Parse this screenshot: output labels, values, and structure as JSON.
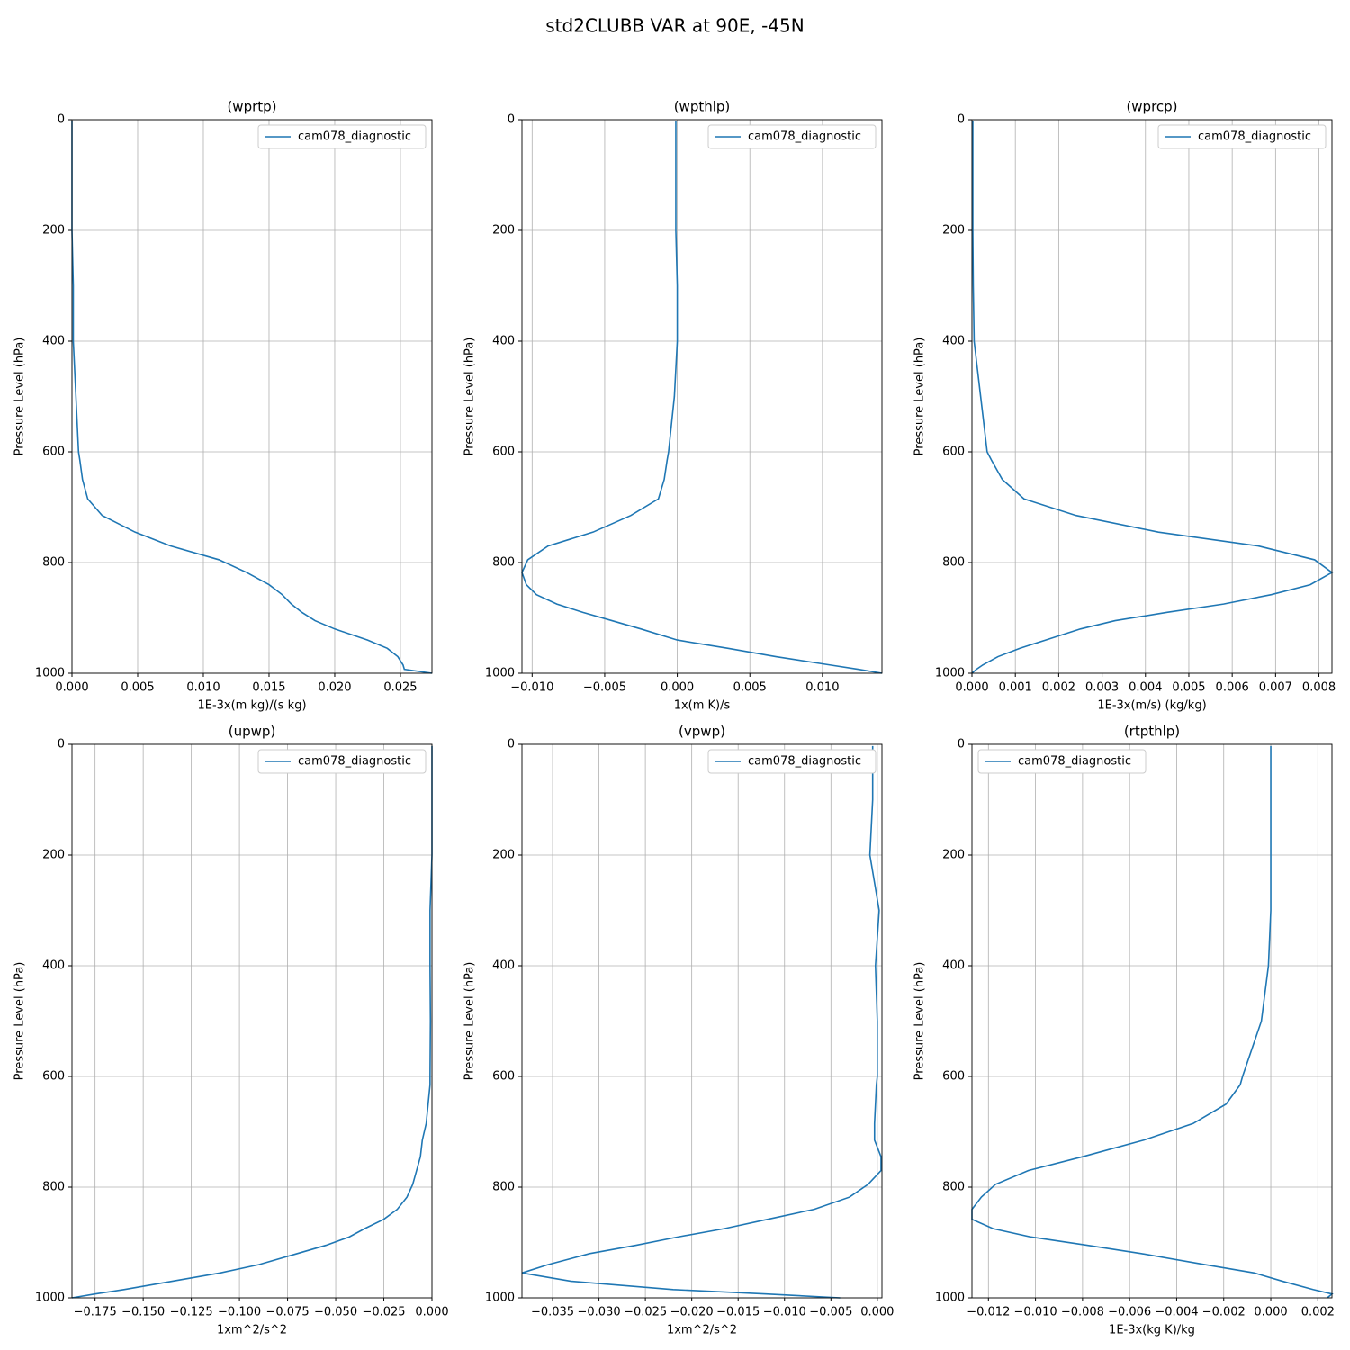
{
  "title": "std2CLUBB VAR at 90E, -45N",
  "chart_data": [
    {
      "type": "line",
      "title": "(wprtp)",
      "x_label": "1E-3x(m kg)/(s kg)",
      "y_label": "Pressure Level (hPa)",
      "grid": true,
      "legend": "upper right",
      "xlim": [
        0,
        0.0274
      ],
      "xticks": [
        {
          "value": 0,
          "label": "0.000"
        },
        {
          "value": 0.005,
          "label": "0.005"
        },
        {
          "value": 0.01,
          "label": "0.010"
        },
        {
          "value": 0.015,
          "label": "0.015"
        },
        {
          "value": 0.02,
          "label": "0.020"
        },
        {
          "value": 0.025,
          "label": "0.025"
        }
      ],
      "ylim": [
        1000,
        0
      ],
      "yticks": [
        0,
        200,
        400,
        600,
        800,
        1000
      ],
      "y": [
        3,
        100,
        200,
        300,
        400,
        500,
        600,
        615,
        650,
        685,
        715,
        745,
        770,
        795,
        818,
        840,
        858,
        875,
        890,
        905,
        920,
        940,
        955,
        970,
        985,
        993,
        1000
      ],
      "series": [
        {
          "name": "cam078_diagnostic",
          "color": "#1f77b4",
          "values": [
            0,
            0,
            0,
            0.0001,
            0.0001,
            0.0003,
            0.0005,
            0.0006,
            0.0008,
            0.0012,
            0.0023,
            0.0048,
            0.0075,
            0.0112,
            0.0133,
            0.015,
            0.016,
            0.0167,
            0.0175,
            0.0185,
            0.02,
            0.0225,
            0.024,
            0.0248,
            0.0252,
            0.0253,
            0.0274
          ]
        }
      ]
    },
    {
      "type": "line",
      "title": "(wpthlp)",
      "x_label": "1x(m K)/s",
      "y_label": "Pressure Level (hPa)",
      "grid": true,
      "legend": "upper right",
      "xlim": [
        -0.0107,
        0.0141
      ],
      "xticks": [
        {
          "value": -0.01,
          "label": "−0.010"
        },
        {
          "value": -0.005,
          "label": "−0.005"
        },
        {
          "value": 0,
          "label": "0.000"
        },
        {
          "value": 0.005,
          "label": "0.005"
        },
        {
          "value": 0.01,
          "label": "0.010"
        }
      ],
      "ylim": [
        1000,
        0
      ],
      "yticks": [
        0,
        200,
        400,
        600,
        800,
        1000
      ],
      "y": [
        3,
        100,
        200,
        300,
        400,
        500,
        600,
        615,
        650,
        685,
        715,
        745,
        770,
        795,
        818,
        840,
        858,
        875,
        890,
        905,
        920,
        940,
        955,
        970,
        985,
        993,
        1000
      ],
      "series": [
        {
          "name": "cam078_diagnostic",
          "color": "#1f77b4",
          "values": [
            -0.0001,
            -0.0001,
            -0.0001,
            0,
            0,
            -0.0002,
            -0.0006,
            -0.0007,
            -0.0009,
            -0.0013,
            -0.0032,
            -0.0058,
            -0.0089,
            -0.0103,
            -0.0107,
            -0.0104,
            -0.0097,
            -0.0083,
            -0.0065,
            -0.0045,
            -0.0025,
            0,
            0.0035,
            0.0068,
            0.0105,
            0.0125,
            0.0141
          ]
        }
      ]
    },
    {
      "type": "line",
      "title": "(wprcp)",
      "x_label": "1E-3x(m/s) (kg/kg)",
      "y_label": "Pressure Level (hPa)",
      "grid": true,
      "legend": "upper right",
      "xlim": [
        0,
        0.0083
      ],
      "xticks": [
        {
          "value": 0,
          "label": "0.000"
        },
        {
          "value": 0.001,
          "label": "0.001"
        },
        {
          "value": 0.002,
          "label": "0.002"
        },
        {
          "value": 0.003,
          "label": "0.003"
        },
        {
          "value": 0.004,
          "label": "0.004"
        },
        {
          "value": 0.005,
          "label": "0.005"
        },
        {
          "value": 0.006,
          "label": "0.006"
        },
        {
          "value": 0.007,
          "label": "0.007"
        },
        {
          "value": 0.008,
          "label": "0.008"
        }
      ],
      "ylim": [
        1000,
        0
      ],
      "yticks": [
        0,
        200,
        400,
        600,
        800,
        1000
      ],
      "y": [
        3,
        100,
        200,
        300,
        400,
        500,
        600,
        615,
        650,
        685,
        715,
        745,
        770,
        795,
        818,
        840,
        858,
        875,
        890,
        905,
        920,
        940,
        955,
        970,
        985,
        993,
        1000
      ],
      "series": [
        {
          "name": "cam078_diagnostic",
          "color": "#1f77b4",
          "values": [
            2e-05,
            2e-05,
            2e-05,
            3e-05,
            5e-05,
            0.0002,
            0.00035,
            0.00045,
            0.0007,
            0.0012,
            0.0024,
            0.0043,
            0.0066,
            0.0079,
            0.0083,
            0.0078,
            0.0069,
            0.0058,
            0.0045,
            0.0033,
            0.0025,
            0.0017,
            0.0011,
            0.0006,
            0.00025,
            0.0001,
            0
          ]
        }
      ]
    },
    {
      "type": "line",
      "title": "(upwp)",
      "x_label": "1xm^2/s^2",
      "y_label": "Pressure Level (hPa)",
      "grid": true,
      "legend": "upper right",
      "xlim": [
        -0.187,
        0
      ],
      "xticks": [
        {
          "value": -0.175,
          "label": "−0.175"
        },
        {
          "value": -0.15,
          "label": "−0.150"
        },
        {
          "value": -0.125,
          "label": "−0.125"
        },
        {
          "value": -0.1,
          "label": "−0.100"
        },
        {
          "value": -0.075,
          "label": "−0.075"
        },
        {
          "value": -0.05,
          "label": "−0.050"
        },
        {
          "value": -0.025,
          "label": "−0.025"
        },
        {
          "value": 0,
          "label": "0.000"
        }
      ],
      "ylim": [
        1000,
        0
      ],
      "yticks": [
        0,
        200,
        400,
        600,
        800,
        1000
      ],
      "y": [
        3,
        100,
        200,
        300,
        400,
        500,
        600,
        615,
        650,
        685,
        715,
        745,
        770,
        795,
        818,
        840,
        858,
        875,
        890,
        905,
        920,
        940,
        955,
        970,
        985,
        993,
        1000
      ],
      "series": [
        {
          "name": "cam078_diagnostic",
          "color": "#1f77b4",
          "values": [
            0,
            0,
            0,
            -0.001,
            -0.001,
            -0.0008,
            -0.001,
            -0.001,
            -0.002,
            -0.003,
            -0.005,
            -0.006,
            -0.008,
            -0.01,
            -0.013,
            -0.018,
            -0.025,
            -0.035,
            -0.043,
            -0.055,
            -0.07,
            -0.09,
            -0.11,
            -0.135,
            -0.16,
            -0.175,
            -0.187
          ]
        }
      ]
    },
    {
      "type": "line",
      "title": "(vpwp)",
      "x_label": "1xm^2/s^2",
      "y_label": "Pressure Level (hPa)",
      "grid": true,
      "legend": "upper right",
      "xlim": [
        -0.0383,
        0.0005
      ],
      "xticks": [
        {
          "value": -0.035,
          "label": "−0.035"
        },
        {
          "value": -0.03,
          "label": "−0.030"
        },
        {
          "value": -0.025,
          "label": "−0.025"
        },
        {
          "value": -0.02,
          "label": "−0.020"
        },
        {
          "value": -0.015,
          "label": "−0.015"
        },
        {
          "value": -0.01,
          "label": "−0.010"
        },
        {
          "value": -0.005,
          "label": "−0.005"
        },
        {
          "value": 0,
          "label": "0.000"
        }
      ],
      "ylim": [
        1000,
        0
      ],
      "yticks": [
        0,
        200,
        400,
        600,
        800,
        1000
      ],
      "y": [
        3,
        100,
        200,
        300,
        400,
        500,
        600,
        615,
        650,
        685,
        715,
        745,
        770,
        795,
        818,
        840,
        858,
        875,
        890,
        905,
        920,
        940,
        955,
        970,
        985,
        993,
        1000
      ],
      "series": [
        {
          "name": "cam078_diagnostic",
          "color": "#1f77b4",
          "values": [
            -0.0005,
            -0.0005,
            -0.0008,
            0.0002,
            -0.0002,
            0,
            0,
            -0.0001,
            -0.0002,
            -0.0003,
            -0.0003,
            0.0004,
            0.0004,
            -0.001,
            -0.003,
            -0.0068,
            -0.0118,
            -0.0165,
            -0.0215,
            -0.026,
            -0.031,
            -0.0355,
            -0.0383,
            -0.033,
            -0.022,
            -0.012,
            -0.004
          ]
        }
      ]
    },
    {
      "type": "line",
      "title": "(rtpthlp)",
      "x_label": "1E-3x(kg K)/kg",
      "y_label": "Pressure Level (hPa)",
      "grid": true,
      "legend": "upper left",
      "xlim": [
        -0.0127,
        0.0026
      ],
      "xticks": [
        {
          "value": -0.012,
          "label": "−0.012"
        },
        {
          "value": -0.01,
          "label": "−0.010"
        },
        {
          "value": -0.008,
          "label": "−0.008"
        },
        {
          "value": -0.006,
          "label": "−0.006"
        },
        {
          "value": -0.004,
          "label": "−0.004"
        },
        {
          "value": -0.002,
          "label": "−0.002"
        },
        {
          "value": 0,
          "label": "0.000"
        },
        {
          "value": 0.002,
          "label": "0.002"
        }
      ],
      "ylim": [
        1000,
        0
      ],
      "yticks": [
        0,
        200,
        400,
        600,
        800,
        1000
      ],
      "y": [
        3,
        100,
        200,
        300,
        400,
        500,
        600,
        615,
        650,
        685,
        715,
        745,
        770,
        795,
        818,
        840,
        858,
        875,
        890,
        905,
        920,
        940,
        955,
        970,
        985,
        993,
        1000
      ],
      "series": [
        {
          "name": "cam078_diagnostic",
          "color": "#1f77b4",
          "values": [
            0,
            0,
            0,
            0,
            -0.0001,
            -0.0004,
            -0.0012,
            -0.0013,
            -0.0019,
            -0.0033,
            -0.0054,
            -0.008,
            -0.0103,
            -0.0117,
            -0.0123,
            -0.0127,
            -0.0127,
            -0.0118,
            -0.0102,
            -0.0078,
            -0.0055,
            -0.0028,
            -0.0007,
            0.0005,
            0.0018,
            0.0026,
            0.0024
          ]
        }
      ]
    }
  ]
}
